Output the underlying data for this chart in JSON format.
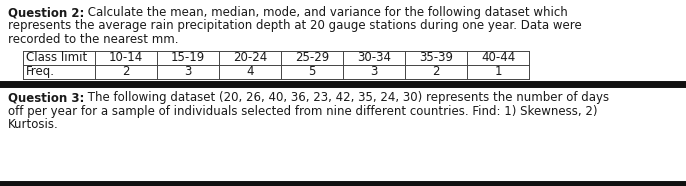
{
  "q2_bold": "Question 2:",
  "q2_line1_rest": " Calculate the mean, median, mode, and variance for the following dataset which",
  "q2_line2": "represents the average rain precipitation depth at 20 gauge stations during one year. Data were",
  "q2_line3": "recorded to the nearest mm.",
  "table_headers": [
    "Class limit",
    "10-14",
    "15-19",
    "20-24",
    "25-29",
    "30-34",
    "35-39",
    "40-44"
  ],
  "table_row_label": "Freq.",
  "table_freqs": [
    "2",
    "3",
    "4",
    "5",
    "3",
    "2",
    "1"
  ],
  "q3_bold": "Question 3:",
  "q3_line1_rest": " The following dataset (20, 26, 40, 36, 23, 42, 35, 24, 30) represents the number of days",
  "q3_line2": "off per year for a sample of individuals selected from nine different countries. Find: 1) Skewness, 2)",
  "q3_line3": "Kurtosis.",
  "bg_color": "#ffffff",
  "text_color": "#1a1a1a",
  "font_size": 8.5,
  "table_font_size": 8.5,
  "divider_color": "#111111",
  "table_border_color": "#444444",
  "top_border_color": "#444444"
}
